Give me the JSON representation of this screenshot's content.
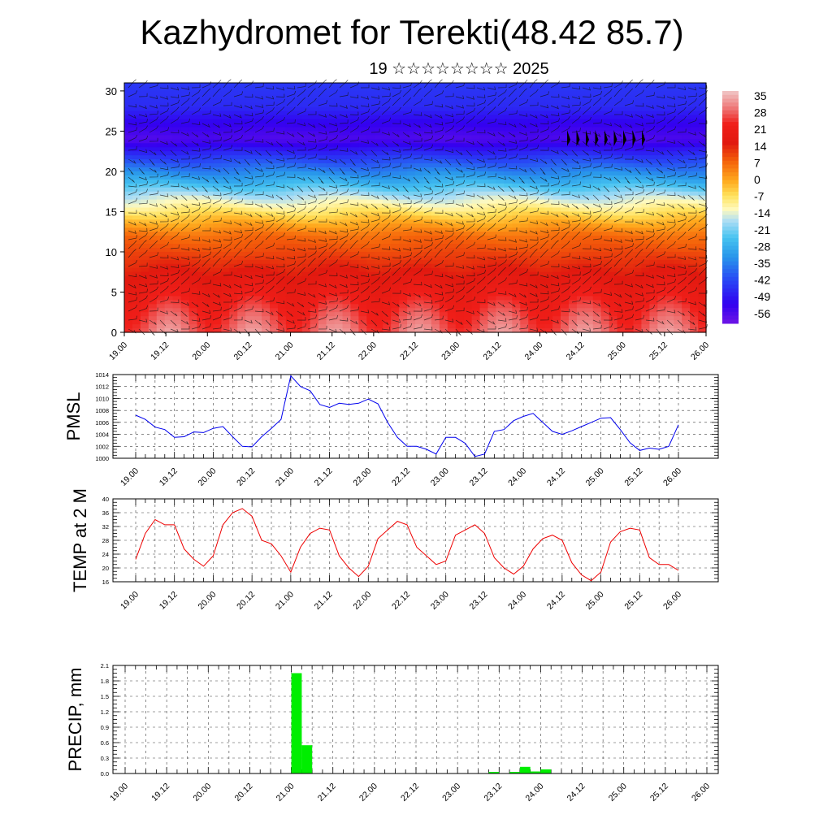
{
  "title": "Kazhydromet for Terekti(48.42 85.7)",
  "subtitle": "19 ☆☆☆☆☆☆☆☆ 2025",
  "time_ticks": [
    "19.00",
    "19.12",
    "20.00",
    "20.12",
    "21.00",
    "21.12",
    "22.00",
    "22.12",
    "23.00",
    "23.12",
    "24.00",
    "24.12",
    "25.00",
    "25.12",
    "26.00"
  ],
  "chart_data": [
    {
      "type": "heatmap",
      "name": "cross-section",
      "xlabel": "",
      "ylabel": "",
      "x_ticks": [
        "19.00",
        "19.12",
        "20.00",
        "20.12",
        "21.00",
        "21.12",
        "22.00",
        "22.12",
        "23.00",
        "23.12",
        "24.00",
        "24.12",
        "25.00",
        "25.12",
        "26.00"
      ],
      "y_ticks": [
        0,
        5,
        10,
        15,
        20,
        25,
        30
      ],
      "ylim": [
        0,
        31
      ],
      "colorbar_labels": [
        35,
        28,
        21,
        14,
        7,
        0,
        -7,
        -14,
        -21,
        -28,
        -35,
        -42,
        -49,
        -56
      ],
      "colorbar_range": [
        -60,
        38
      ],
      "temperature_profile": {
        "heights": [
          0,
          3,
          6,
          9,
          12,
          14,
          15,
          16,
          17,
          19,
          22,
          24,
          26,
          28,
          31
        ],
        "values": [
          30,
          25,
          19,
          13,
          7,
          -2,
          -7,
          -12,
          -17,
          -29,
          -45,
          -56,
          -52,
          -46,
          -44
        ]
      },
      "wind_barbs": "overlay"
    },
    {
      "type": "line",
      "name": "pmsl",
      "ylabel": "PMSL",
      "ylim": [
        1000,
        1014
      ],
      "y_ticks": [
        1000,
        1002,
        1004,
        1006,
        1008,
        1010,
        1012,
        1014
      ],
      "x_ticks": [
        "19.00",
        "19.12",
        "20.00",
        "20.12",
        "21.00",
        "21.12",
        "22.00",
        "22.12",
        "23.00",
        "23.12",
        "24.00",
        "24.12",
        "25.00",
        "25.12",
        "26.00"
      ],
      "color": "#0000ee",
      "values": [
        1007.2,
        1006.5,
        1005.2,
        1004.8,
        1003.5,
        1003.6,
        1004.4,
        1004.3,
        1005.0,
        1005.3,
        1003.6,
        1002.0,
        1001.9,
        1003.6,
        1005.0,
        1006.5,
        1013.8,
        1012.0,
        1011.3,
        1009.0,
        1008.5,
        1009.2,
        1009.0,
        1009.2,
        1009.9,
        1009.1,
        1006.0,
        1003.5,
        1002.0,
        1002.0,
        1001.5,
        1000.7,
        1003.5,
        1003.5,
        1002.5,
        1000.3,
        1000.7,
        1004.5,
        1004.8,
        1006.3,
        1007.0,
        1007.5,
        1006.0,
        1004.5,
        1004.0,
        1004.6,
        1005.3,
        1006.0,
        1006.7,
        1006.8,
        1004.8,
        1002.6,
        1001.3,
        1001.7,
        1001.5,
        1002.0,
        1005.6
      ]
    },
    {
      "type": "line",
      "name": "temp-2m",
      "ylabel": "TEMP at 2 M",
      "ylim": [
        16,
        40
      ],
      "y_ticks": [
        16,
        20,
        24,
        28,
        32,
        36,
        40
      ],
      "x_ticks": [
        "19.00",
        "19.12",
        "20.00",
        "20.12",
        "21.00",
        "21.12",
        "22.00",
        "22.12",
        "23.00",
        "23.12",
        "24.00",
        "24.12",
        "25.00",
        "25.12",
        "26.00"
      ],
      "color": "#ee0000",
      "values": [
        22.5,
        30.0,
        34.0,
        32.5,
        32.5,
        25.5,
        22.5,
        20.5,
        23.5,
        32.5,
        36.0,
        37.2,
        35.0,
        28.0,
        27.0,
        23.5,
        18.8,
        26.0,
        30.0,
        31.5,
        31.0,
        23.5,
        20.0,
        17.5,
        20.5,
        28.5,
        31.0,
        33.5,
        32.5,
        26.0,
        23.5,
        21.0,
        22.0,
        29.5,
        31.0,
        32.5,
        30.0,
        23.0,
        20.0,
        18.2,
        20.5,
        25.5,
        28.5,
        29.5,
        28.0,
        21.5,
        18.0,
        16.3,
        18.8,
        27.5,
        30.5,
        31.5,
        31.0,
        23.0,
        21.0,
        21.0,
        19.3
      ]
    },
    {
      "type": "bar",
      "name": "precip",
      "ylabel": "PRECIP, mm",
      "ylim": [
        0,
        2.1
      ],
      "y_ticks": [
        "0.0",
        "0.3",
        "0.6",
        "0.9",
        "1.2",
        "1.5",
        "1.8",
        "2.1"
      ],
      "x_ticks": [
        "19.00",
        "19.12",
        "20.00",
        "20.12",
        "21.00",
        "21.12",
        "22.00",
        "22.12",
        "23.00",
        "23.12",
        "24.00",
        "24.12",
        "25.00",
        "25.12",
        "26.00"
      ],
      "color": "#00ee00",
      "bars": [
        {
          "t": 16.5,
          "value": 1.95
        },
        {
          "t": 17.5,
          "value": 0.55
        },
        {
          "t": 35.5,
          "value": 0.03
        },
        {
          "t": 37.5,
          "value": 0.03
        },
        {
          "t": 38.5,
          "value": 0.13
        },
        {
          "t": 39.5,
          "value": 0.04
        },
        {
          "t": 40.5,
          "value": 0.08
        }
      ]
    }
  ]
}
